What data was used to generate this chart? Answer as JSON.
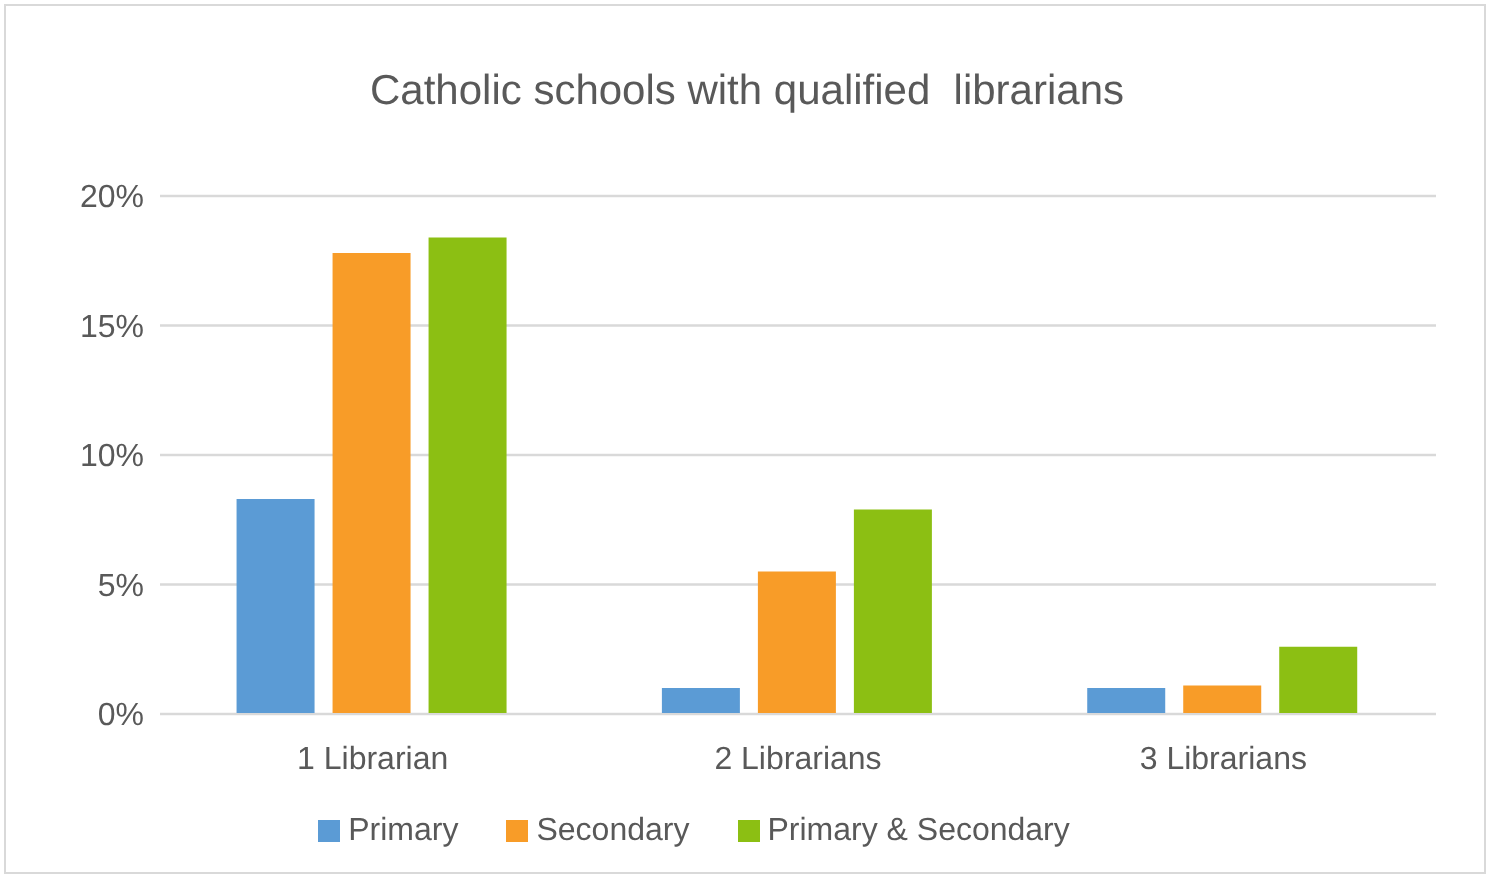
{
  "chart_data": {
    "type": "bar",
    "title": "Catholic schools with qualified  librarians",
    "categories": [
      "1 Librarian",
      "2 Librarians",
      "3 Librarians"
    ],
    "series": [
      {
        "name": "Primary",
        "color": "#5b9bd5",
        "values": [
          8.3,
          1.0,
          1.0
        ]
      },
      {
        "name": "Secondary",
        "color": "#f89c28",
        "values": [
          17.8,
          5.5,
          1.1
        ]
      },
      {
        "name": "Primary & Secondary",
        "color": "#8cbf13",
        "values": [
          18.4,
          7.9,
          2.6
        ]
      }
    ],
    "ylim": [
      0,
      20
    ],
    "yticks": [
      {
        "value": 0,
        "label": "0%"
      },
      {
        "value": 5,
        "label": "5%"
      },
      {
        "value": 10,
        "label": "10%"
      },
      {
        "value": 15,
        "label": "15%"
      },
      {
        "value": 20,
        "label": "20%"
      }
    ],
    "grid": "y",
    "legend": "bottom"
  }
}
